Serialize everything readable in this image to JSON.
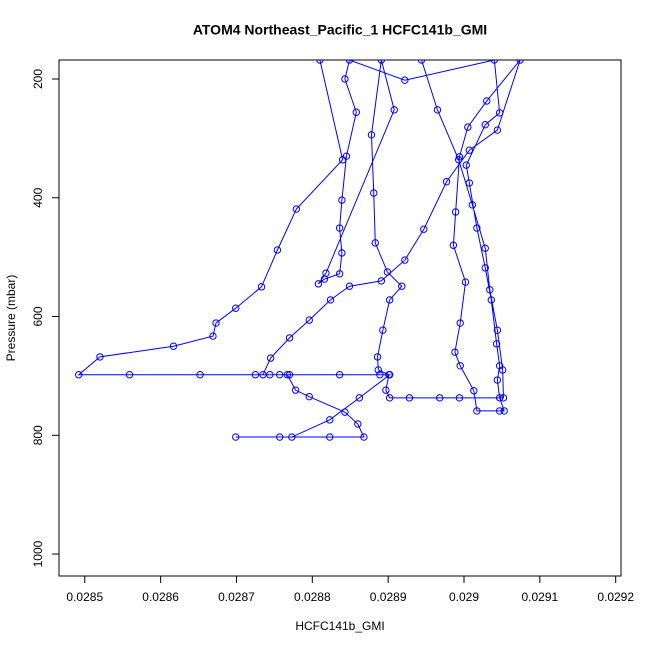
{
  "chart_data": {
    "type": "line",
    "title": "ATOM4 Northeast_Pacific_1 HCFC141b_GMI",
    "x_label": "HCFC141b_GMI",
    "y_label": "Pressure (mbar)",
    "color": "#0000ff",
    "xlim": [
      0.028466,
      0.029207
    ],
    "ylim": [
      1037,
      168
    ],
    "xticks": [
      0.0285,
      0.0286,
      0.0287,
      0.0288,
      0.0289,
      0.029,
      0.0291,
      0.0292
    ],
    "yticks": [
      200,
      400,
      600,
      800,
      1000
    ],
    "x": [
      0.02881,
      0.02884,
      0.028779,
      0.028754,
      0.028733,
      0.028699,
      0.028673,
      0.028669,
      0.028617,
      0.02852,
      0.028492,
      0.028559,
      0.028652,
      0.028725,
      0.028744,
      0.028757,
      0.02877,
      0.028836,
      0.028889,
      0.028902,
      0.028862,
      0.028823,
      0.028773,
      0.028699,
      0.028757,
      0.028823,
      0.028868,
      0.02886,
      0.028843,
      0.028796,
      0.028778,
      0.028767,
      0.028735,
      0.028745,
      0.02877,
      0.028796,
      0.028824,
      0.028849,
      0.028891,
      0.028922,
      0.028947,
      0.028977,
      0.029007,
      0.029044,
      0.029074,
      0.02903,
      0.029005,
      0.028994,
      0.028989,
      0.028986,
      0.029002,
      0.028995,
      0.028988,
      0.028995,
      0.029013,
      0.029017,
      0.029047,
      0.029053,
      0.029047,
      0.029044,
      0.029047,
      0.029043,
      0.029036,
      0.029028,
      0.029017,
      0.029007,
      0.029003,
      0.029028,
      0.029047,
      0.02904,
      0.028922,
      0.028849,
      0.028843,
      0.028858,
      0.028845,
      0.028839,
      0.028836,
      0.028839,
      0.028836,
      0.028816,
      0.028808,
      0.028818,
      0.028908,
      0.028891,
      0.028878,
      0.028881,
      0.028883,
      0.028899,
      0.028918,
      0.028902,
      0.028893,
      0.028886,
      0.028887,
      0.028901,
      0.028897,
      0.028902,
      0.028928,
      0.028968,
      0.028994,
      0.029052,
      0.029051,
      0.029044,
      0.029034,
      0.029028,
      0.029011,
      0.028993,
      0.028965,
      0.028944
    ],
    "values": [
      168,
      336,
      419,
      488,
      550,
      586,
      611,
      633,
      650,
      668,
      698,
      698,
      698,
      698,
      698,
      698,
      698,
      698,
      698,
      698,
      737,
      774,
      803,
      803,
      803,
      803,
      803,
      781,
      761,
      735,
      724,
      698,
      698,
      670,
      636,
      606,
      572,
      549,
      540,
      505,
      453,
      373,
      320,
      286,
      168,
      237,
      281,
      331,
      424,
      480,
      542,
      611,
      660,
      683,
      725,
      759,
      759,
      759,
      737,
      707,
      683,
      646,
      572,
      518,
      451,
      375,
      345,
      277,
      257,
      168,
      202,
      168,
      200,
      256,
      330,
      404,
      451,
      493,
      528,
      537,
      545,
      527,
      252,
      168,
      294,
      392,
      476,
      525,
      549,
      572,
      623,
      668,
      690,
      698,
      724,
      737,
      737,
      737,
      737,
      737,
      690,
      623,
      555,
      485,
      412,
      336,
      252,
      168
    ]
  }
}
